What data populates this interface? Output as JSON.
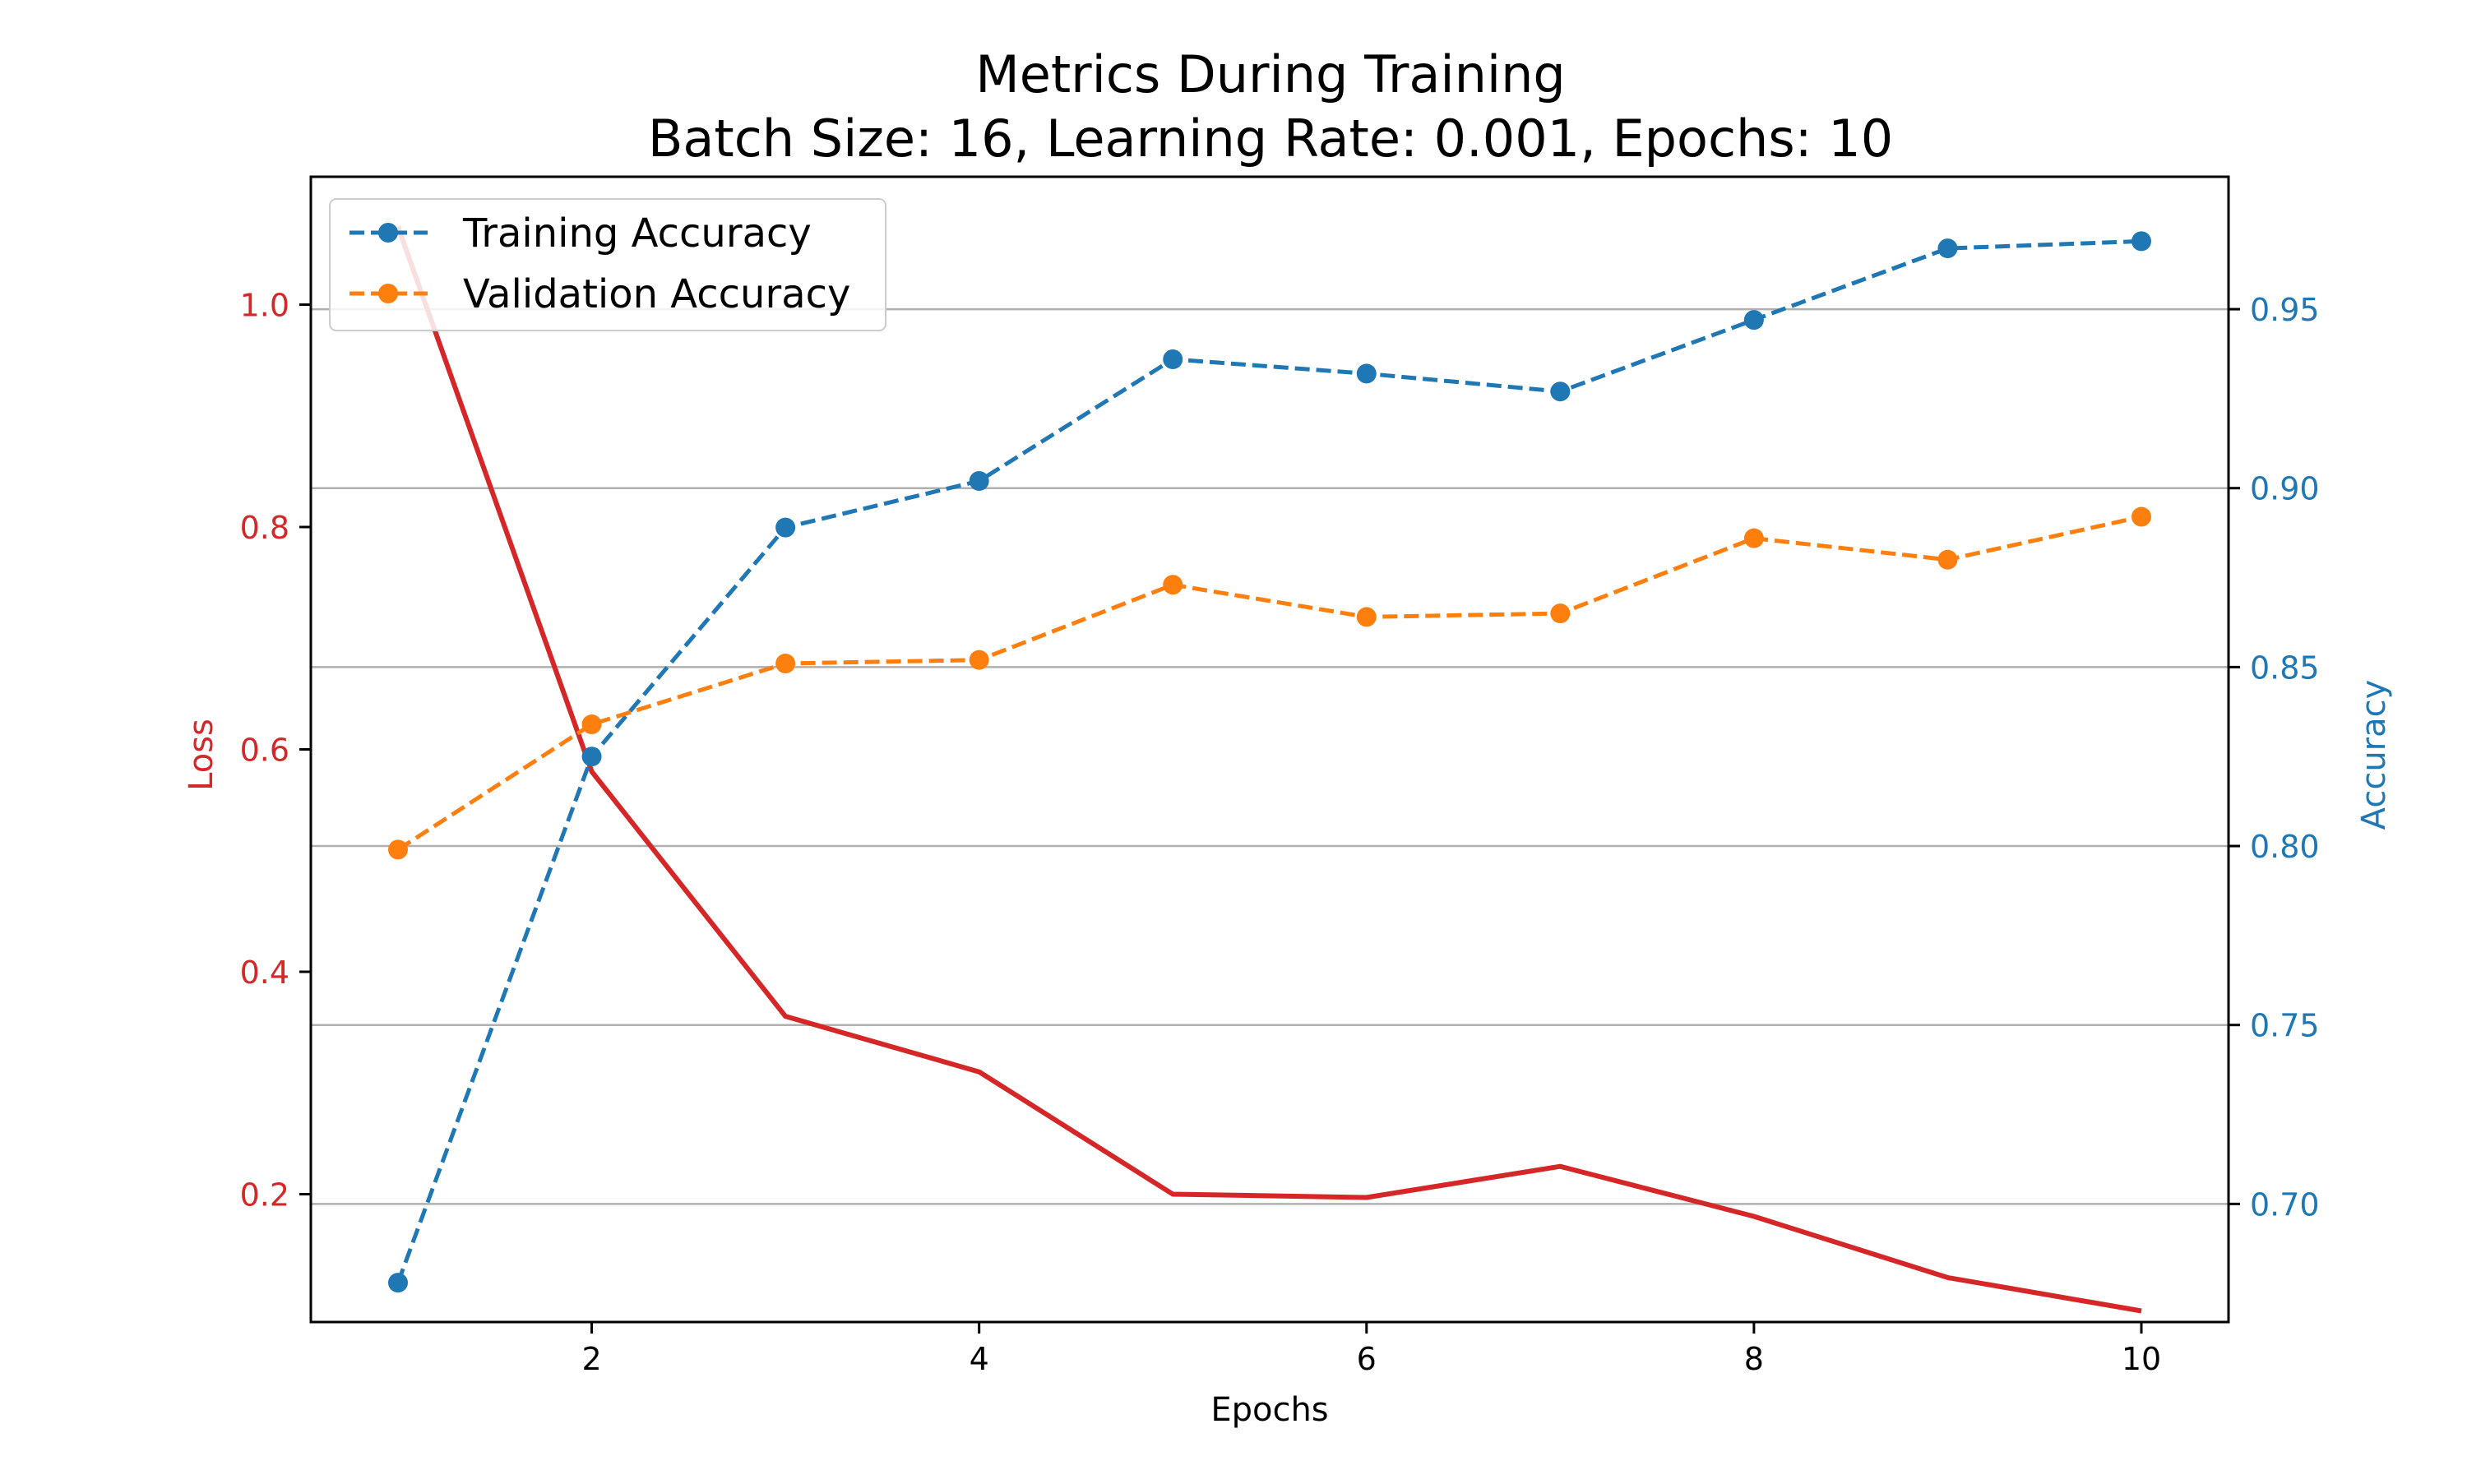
{
  "chart_data": {
    "type": "line",
    "title": "Metrics During Training",
    "subtitle": "Batch Size: 16, Learning Rate: 0.001, Epochs: 10",
    "xlabel": "Epochs",
    "ylabel_left": "Loss",
    "ylabel_right": "Accuracy",
    "x": [
      1,
      2,
      3,
      4,
      5,
      6,
      7,
      8,
      9,
      10
    ],
    "x_ticks": [
      "2",
      "4",
      "6",
      "8",
      "10"
    ],
    "x_tick_values": [
      2,
      4,
      6,
      8,
      10
    ],
    "xlim": [
      0.55,
      10.45
    ],
    "ylim_left": [
      0.085,
      1.115
    ],
    "ylim_right": [
      0.667,
      0.987
    ],
    "y_left_ticks": [
      "0.2",
      "0.4",
      "0.6",
      "0.8",
      "1.0"
    ],
    "y_left_tick_values": [
      0.2,
      0.4,
      0.6,
      0.8,
      1.0
    ],
    "y_right_ticks": [
      "0.70",
      "0.75",
      "0.80",
      "0.85",
      "0.90",
      "0.95"
    ],
    "y_right_tick_values": [
      0.7,
      0.75,
      0.8,
      0.85,
      0.9,
      0.95
    ],
    "grid": "horizontal, right axis",
    "legend_position": "top-left",
    "series": [
      {
        "name": "Training Accuracy",
        "axis": "right",
        "style": "dashed with circle markers",
        "color": "#1f77b4",
        "values": [
          0.678,
          0.825,
          0.889,
          0.902,
          0.936,
          0.932,
          0.927,
          0.947,
          0.967,
          0.969
        ]
      },
      {
        "name": "Validation Accuracy",
        "axis": "right",
        "style": "dashed with circle markers",
        "color": "#ff7f0e",
        "values": [
          0.799,
          0.834,
          0.851,
          0.852,
          0.873,
          0.864,
          0.865,
          0.886,
          0.88,
          0.892
        ]
      },
      {
        "axis": "left",
        "style": "solid",
        "color": "#d62728",
        "values": [
          1.07,
          0.58,
          0.36,
          0.31,
          0.2,
          0.197,
          0.225,
          0.18,
          0.125,
          0.095
        ]
      }
    ],
    "colors": {
      "loss_axis": "#d62728",
      "accuracy_axis": "#1f77b4",
      "grid": "#b0b0b0",
      "frame": "#000000"
    }
  }
}
